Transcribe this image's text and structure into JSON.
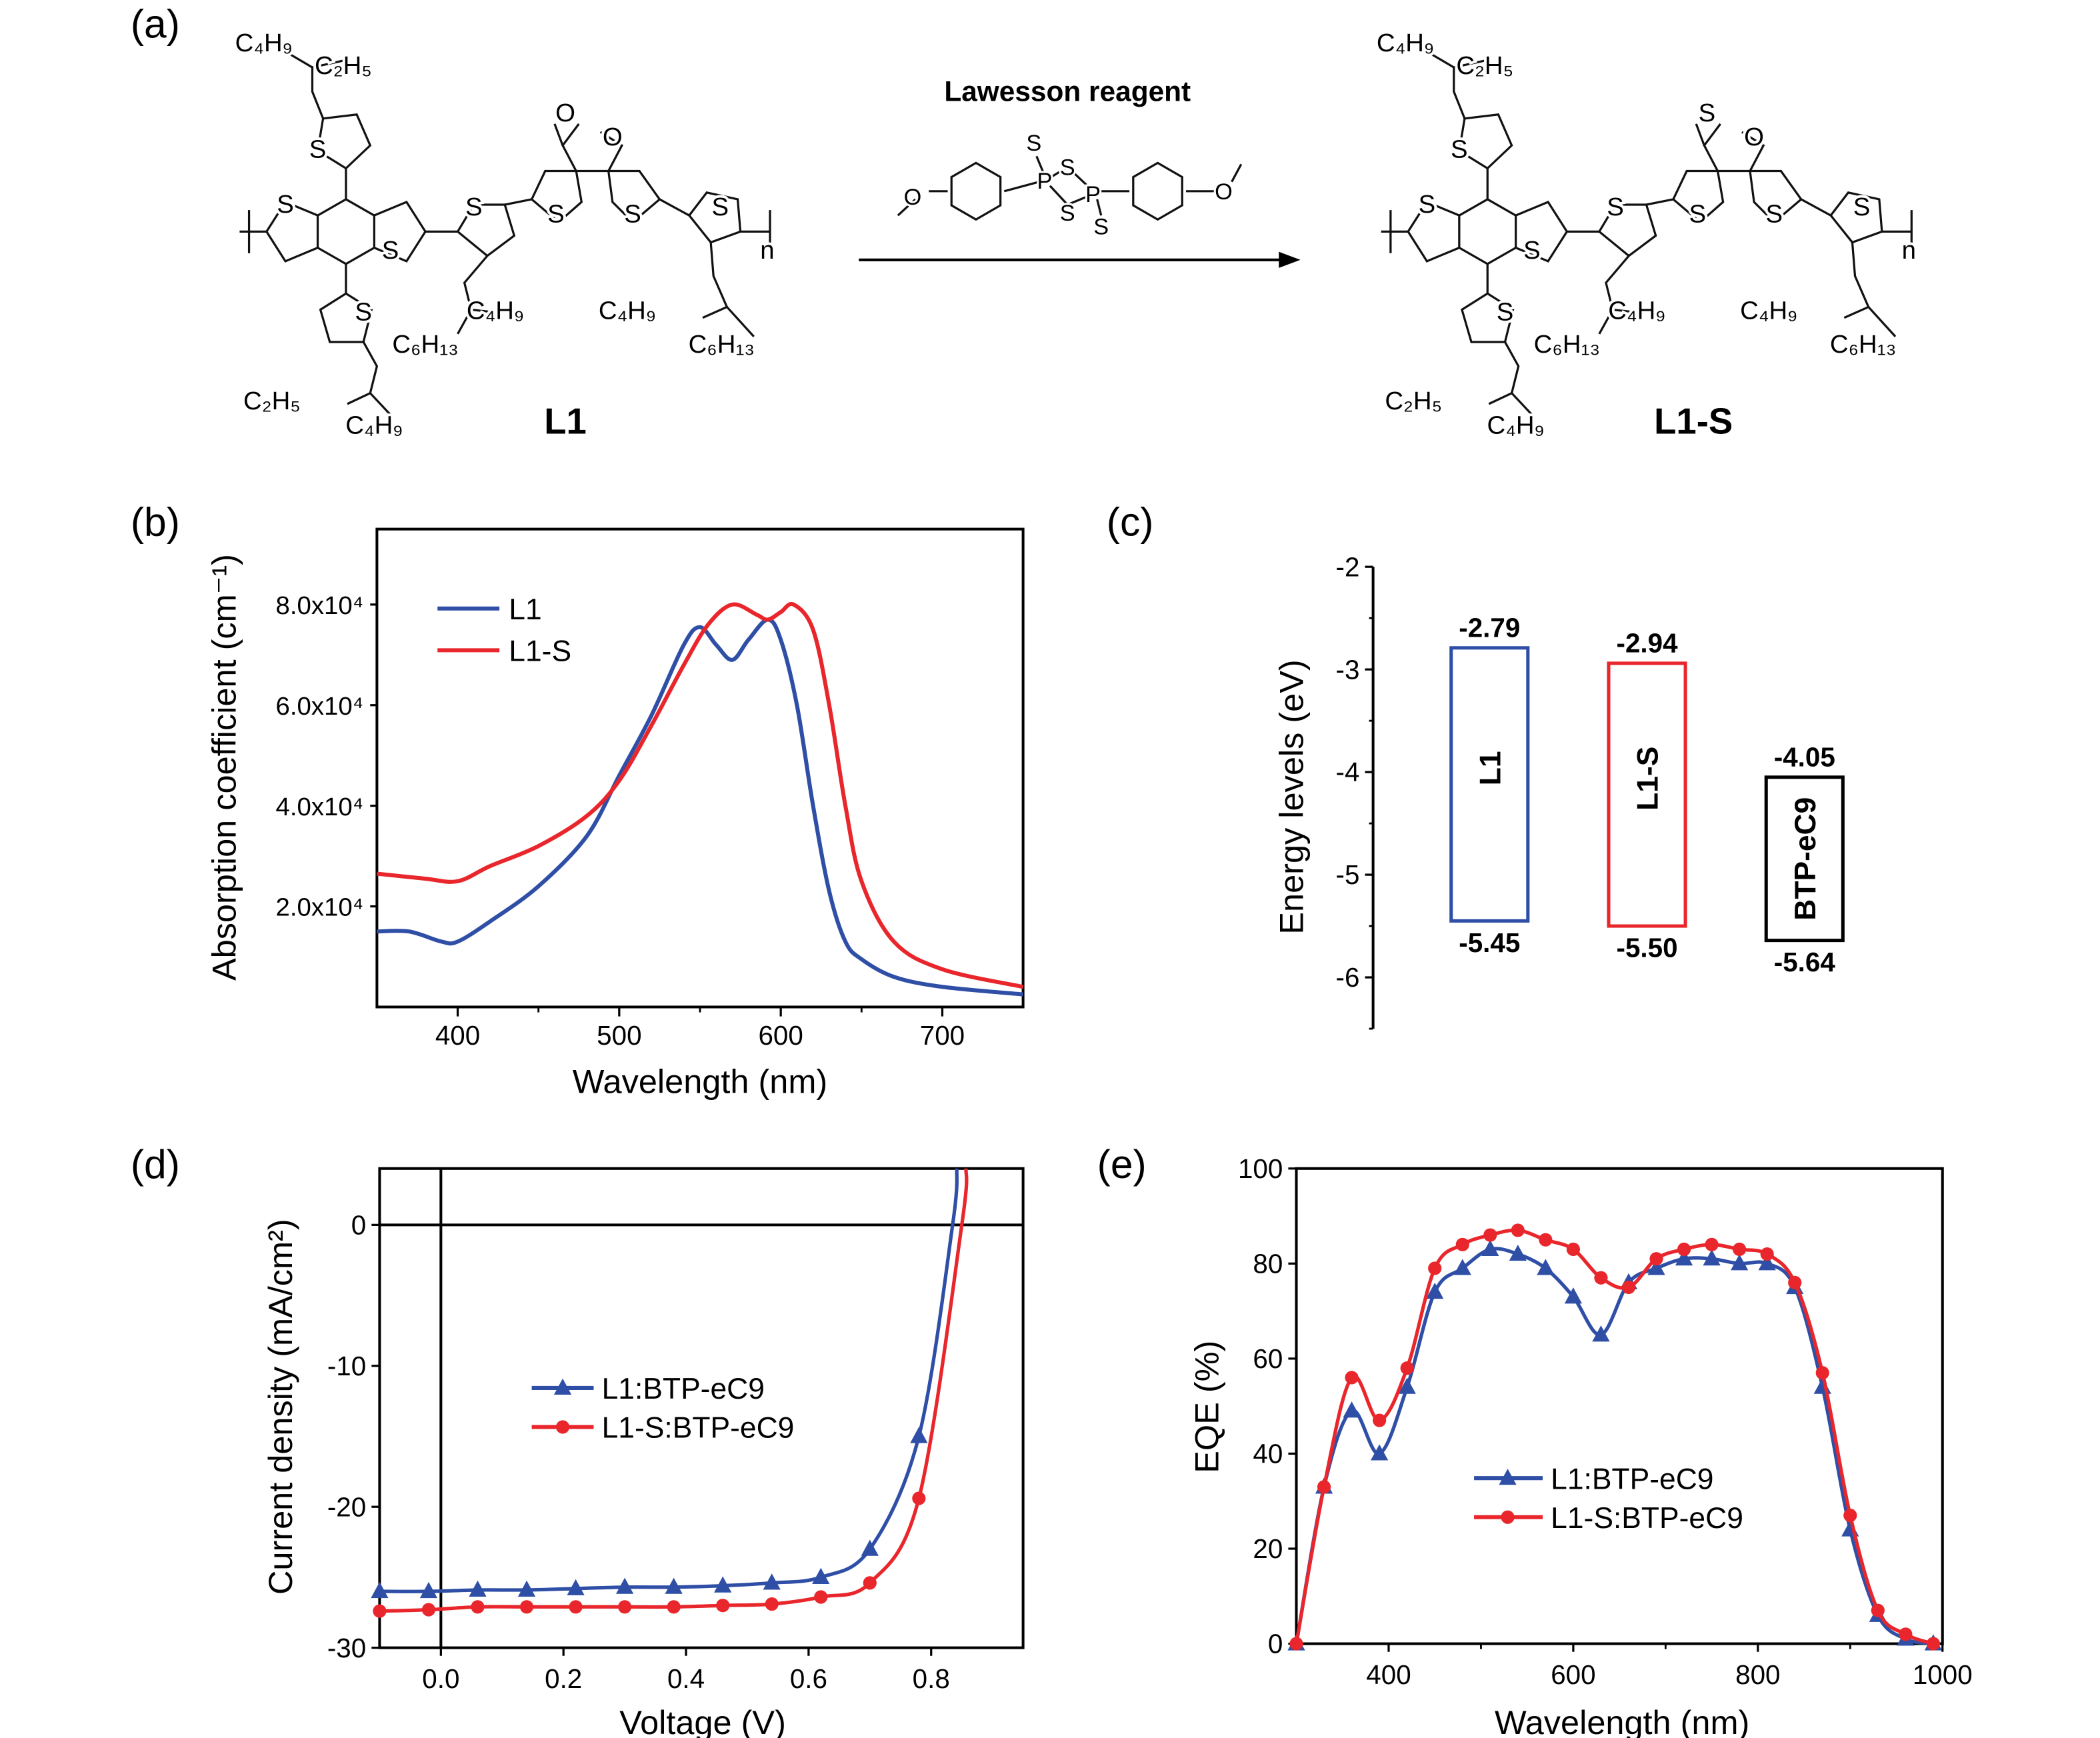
{
  "panel_labels": {
    "a": "(a)",
    "b": "(b)",
    "c": "(c)",
    "d": "(d)",
    "e": "(e)"
  },
  "colors": {
    "L1": "#2f4fa6",
    "L1-S": "#e8262b",
    "BTP-eC9": "#000000"
  },
  "scheme": {
    "reagent_label": "Lawesson reagent",
    "reactant_name": "L1",
    "product_name": "L1-S",
    "reactant_labels": [
      "C₄H₉",
      "C₂H₅",
      "S",
      "S",
      "S",
      "S",
      "S",
      "S",
      "S",
      "O",
      "O",
      "n",
      "C₄H₉",
      "C₆H₁₃",
      "C₄H₉",
      "C₆H₁₃",
      "S",
      "C₂H₅",
      "C₄H₉"
    ],
    "product_labels": [
      "C₄H₉",
      "C₂H₅",
      "S",
      "S",
      "S",
      "S",
      "S",
      "S",
      "S",
      "S",
      "O",
      "n",
      "C₄H₉",
      "C₆H₁₃",
      "C₄H₉",
      "C₆H₁₃",
      "S",
      "C₂H₅",
      "C₄H₉"
    ],
    "reagent_atoms": [
      "O",
      "S",
      "S",
      "P",
      "P",
      "S",
      "S",
      "O"
    ]
  },
  "chart_data": [
    {
      "panel": "b",
      "type": "line",
      "xlabel": "Wavelength (nm)",
      "ylabel": "Absorption coefficient (cm⁻¹)",
      "xlim": [
        350,
        750
      ],
      "ylim": [
        0,
        95000
      ],
      "xticks": [
        400,
        500,
        600,
        700
      ],
      "yticks": [
        20000,
        40000,
        60000,
        80000
      ],
      "ytick_labels": [
        "2.0x10⁴",
        "4.0x10⁴",
        "6.0x10⁴",
        "8.0x10⁴"
      ],
      "legend": "top-left",
      "series": [
        {
          "name": "L1",
          "color": "#2f4fa6",
          "x": [
            350,
            370,
            390,
            400,
            420,
            450,
            480,
            500,
            520,
            540,
            550,
            560,
            570,
            580,
            592,
            600,
            610,
            620,
            630,
            640,
            650,
            670,
            700,
            750
          ],
          "y": [
            15000,
            15000,
            13000,
            13000,
            17000,
            24000,
            34000,
            46000,
            58000,
            72000,
            75500,
            72000,
            69000,
            73000,
            77000,
            73000,
            60000,
            40000,
            23000,
            13000,
            9500,
            6000,
            4000,
            2500
          ]
        },
        {
          "name": "L1-S",
          "color": "#e8262b",
          "x": [
            350,
            380,
            400,
            420,
            450,
            480,
            500,
            520,
            540,
            555,
            570,
            585,
            592,
            600,
            608,
            620,
            630,
            640,
            650,
            670,
            700,
            750
          ],
          "y": [
            26500,
            25500,
            25000,
            28000,
            32000,
            38000,
            45000,
            56000,
            68000,
            76000,
            80000,
            78000,
            77000,
            78500,
            80000,
            75000,
            60000,
            40000,
            25000,
            13000,
            7500,
            4000
          ]
        }
      ]
    },
    {
      "panel": "c",
      "type": "bar",
      "ylabel": "Energy levels (eV)",
      "ylim": [
        -6.5,
        -2
      ],
      "yticks": [
        -2,
        -3,
        -4,
        -5,
        -6
      ],
      "bars": [
        {
          "name": "L1",
          "lumo": -2.79,
          "homo": -5.45,
          "color": "#2f4fa6"
        },
        {
          "name": "L1-S",
          "lumo": -2.94,
          "homo": -5.5,
          "color": "#e8262b"
        },
        {
          "name": "BTP-eC9",
          "lumo": -4.05,
          "homo": -5.64,
          "color": "#000000"
        }
      ]
    },
    {
      "panel": "d",
      "type": "line",
      "xlabel": "Voltage (V)",
      "ylabel": "Current density (mA/cm²)",
      "xlim": [
        -0.1,
        0.95
      ],
      "ylim": [
        -30,
        4
      ],
      "xticks": [
        0.0,
        0.2,
        0.4,
        0.6,
        0.8
      ],
      "yticks": [
        0,
        -10,
        -20,
        -30
      ],
      "legend": "center-left",
      "series": [
        {
          "name": "L1:BTP-eC9",
          "color": "#2f4fa6",
          "marker": "triangle",
          "x": [
            -0.1,
            -0.02,
            0.06,
            0.14,
            0.22,
            0.3,
            0.38,
            0.46,
            0.54,
            0.62,
            0.7,
            0.78
          ],
          "y": [
            -26.0,
            -26.0,
            -25.9,
            -25.9,
            -25.8,
            -25.7,
            -25.7,
            -25.6,
            -25.4,
            -25.0,
            -23.0,
            -15.0
          ],
          "extension_x": [
            0.835,
            0.842
          ],
          "extension_y": [
            0,
            4
          ]
        },
        {
          "name": "L1-S:BTP-eC9",
          "color": "#e8262b",
          "marker": "circle",
          "x": [
            -0.1,
            -0.02,
            0.06,
            0.14,
            0.22,
            0.3,
            0.38,
            0.46,
            0.54,
            0.62,
            0.7,
            0.78
          ],
          "y": [
            -27.4,
            -27.3,
            -27.1,
            -27.1,
            -27.1,
            -27.1,
            -27.1,
            -27.0,
            -26.9,
            -26.4,
            -25.4,
            -19.4
          ],
          "extension_x": [
            0.85,
            0.857
          ],
          "extension_y": [
            0,
            4
          ]
        }
      ]
    },
    {
      "panel": "e",
      "type": "line",
      "xlabel": "Wavelength (nm)",
      "ylabel": "EQE (%)",
      "xlim": [
        300,
        1000
      ],
      "ylim": [
        0,
        100
      ],
      "xticks": [
        400,
        600,
        800,
        1000
      ],
      "yticks": [
        0,
        20,
        40,
        60,
        80,
        100
      ],
      "legend": "center",
      "series": [
        {
          "name": "L1:BTP-eC9",
          "color": "#2f4fa6",
          "marker": "triangle",
          "x": [
            300,
            330,
            360,
            390,
            420,
            450,
            480,
            510,
            540,
            570,
            600,
            630,
            660,
            690,
            720,
            750,
            780,
            810,
            840,
            870,
            900,
            930,
            960,
            990
          ],
          "y": [
            0,
            33,
            49,
            40,
            54,
            74,
            79,
            83,
            82,
            79,
            73,
            65,
            76,
            79,
            81,
            81,
            80,
            80,
            75,
            54,
            24,
            6,
            1,
            0
          ]
        },
        {
          "name": "L1-S:BTP-eC9",
          "color": "#e8262b",
          "marker": "circle",
          "x": [
            300,
            330,
            360,
            390,
            420,
            450,
            480,
            510,
            540,
            570,
            600,
            630,
            660,
            690,
            720,
            750,
            780,
            810,
            840,
            870,
            900,
            930,
            960,
            990
          ],
          "y": [
            0,
            33,
            56,
            47,
            58,
            79,
            84,
            86,
            87,
            85,
            83,
            77,
            75,
            81,
            83,
            84,
            83,
            82,
            76,
            57,
            27,
            7,
            2,
            0
          ]
        }
      ]
    }
  ]
}
